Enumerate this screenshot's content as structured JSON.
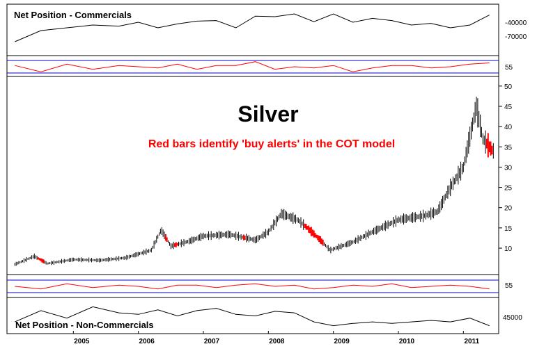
{
  "chart_data": [
    {
      "type": "line",
      "panel": "commercials",
      "label": "Net Position - Commercials",
      "y_ticks": [
        "-40000",
        "-70000"
      ],
      "line_color": "#000000",
      "range": [
        -95000,
        -20000
      ],
      "x": [
        "2004.1",
        "2004.5",
        "2004.9",
        "2005.3",
        "2005.7",
        "2006.0",
        "2006.3",
        "2006.6",
        "2006.9",
        "2007.2",
        "2007.5",
        "2007.8",
        "2008.1",
        "2008.4",
        "2008.7",
        "2009.0",
        "2009.3",
        "2009.6",
        "2009.9",
        "2010.2",
        "2010.5",
        "2010.8",
        "2011.1",
        "2011.4"
      ],
      "values": [
        -80000,
        -60000,
        -55000,
        -50000,
        -52000,
        -45000,
        -55000,
        -48000,
        -43000,
        -42000,
        -55000,
        -34000,
        -35000,
        -30000,
        -44000,
        -30000,
        -45000,
        -38000,
        -42000,
        -50000,
        -47000,
        -55000,
        -50000,
        -32000
      ]
    },
    {
      "type": "line",
      "panel": "cot-index-top",
      "y_ticks": [
        "55"
      ],
      "line_color": "#ff0000",
      "band_color": "#0000cc",
      "values": [
        55,
        50,
        56,
        52,
        55,
        54,
        53,
        56,
        52,
        55,
        55,
        58,
        52,
        54,
        53,
        55,
        50,
        53,
        55,
        55,
        53,
        54,
        56,
        57
      ]
    },
    {
      "type": "bar",
      "panel": "price",
      "title": "Silver",
      "subtitle": "Red bars identify 'buy alerts' in the COT model",
      "y_ticks": [
        "50",
        "45",
        "40",
        "35",
        "30",
        "25",
        "20",
        "15",
        "10"
      ],
      "ylim": [
        4,
        51
      ],
      "x_ticks": [
        "2005",
        "2006",
        "2007",
        "2008",
        "2009",
        "2010",
        "2011"
      ],
      "bar_color": "#000000",
      "alert_color": "#ff0000",
      "x": [
        "2004.1",
        "2004.4",
        "2004.6",
        "2005.0",
        "2005.4",
        "2005.8",
        "2006.2",
        "2006.35",
        "2006.5",
        "2006.8",
        "2007.0",
        "2007.4",
        "2007.8",
        "2008.0",
        "2008.2",
        "2008.45",
        "2008.6",
        "2008.8",
        "2008.95",
        "2009.3",
        "2009.6",
        "2010.0",
        "2010.4",
        "2010.6",
        "2010.8",
        "2011.0",
        "2011.2",
        "2011.3",
        "2011.45"
      ],
      "close": [
        6.0,
        8.0,
        6.2,
        7.2,
        7.0,
        7.6,
        9.5,
        14.5,
        10.5,
        11.8,
        13.0,
        13.4,
        12.0,
        14.0,
        18.5,
        17.0,
        15.0,
        12.0,
        9.5,
        11.5,
        14.0,
        17.0,
        18.0,
        19.0,
        25.0,
        30.0,
        45.0,
        37.0,
        34.0
      ],
      "buy_alert_periods": [
        [
          "2004.45",
          "2004.55"
        ],
        [
          "2006.4",
          "2006.45"
        ],
        [
          "2006.55",
          "2006.6"
        ],
        [
          "2007.6",
          "2007.65"
        ],
        [
          "2008.55",
          "2008.85"
        ],
        [
          "2011.35",
          "2011.45"
        ]
      ]
    },
    {
      "type": "line",
      "panel": "cot-index-bottom",
      "y_ticks": [
        "55"
      ],
      "line_color": "#ff0000",
      "band_color": "#0000cc",
      "values": [
        54,
        52,
        56,
        53,
        55,
        54,
        52,
        55,
        55,
        53,
        55,
        56,
        54,
        55,
        52,
        53,
        55,
        54,
        56,
        53,
        54,
        55,
        54,
        52
      ]
    },
    {
      "type": "line",
      "panel": "non-commercials",
      "label": "Net Position - Non-Commercials",
      "y_ticks": [
        "45000"
      ],
      "line_color": "#000000",
      "values": [
        30000,
        45000,
        35000,
        50000,
        42000,
        40000,
        46000,
        38000,
        45000,
        48000,
        40000,
        38000,
        44000,
        42000,
        30000,
        25000,
        28000,
        30000,
        28000,
        30000,
        32000,
        30000,
        35000,
        25000
      ]
    }
  ]
}
